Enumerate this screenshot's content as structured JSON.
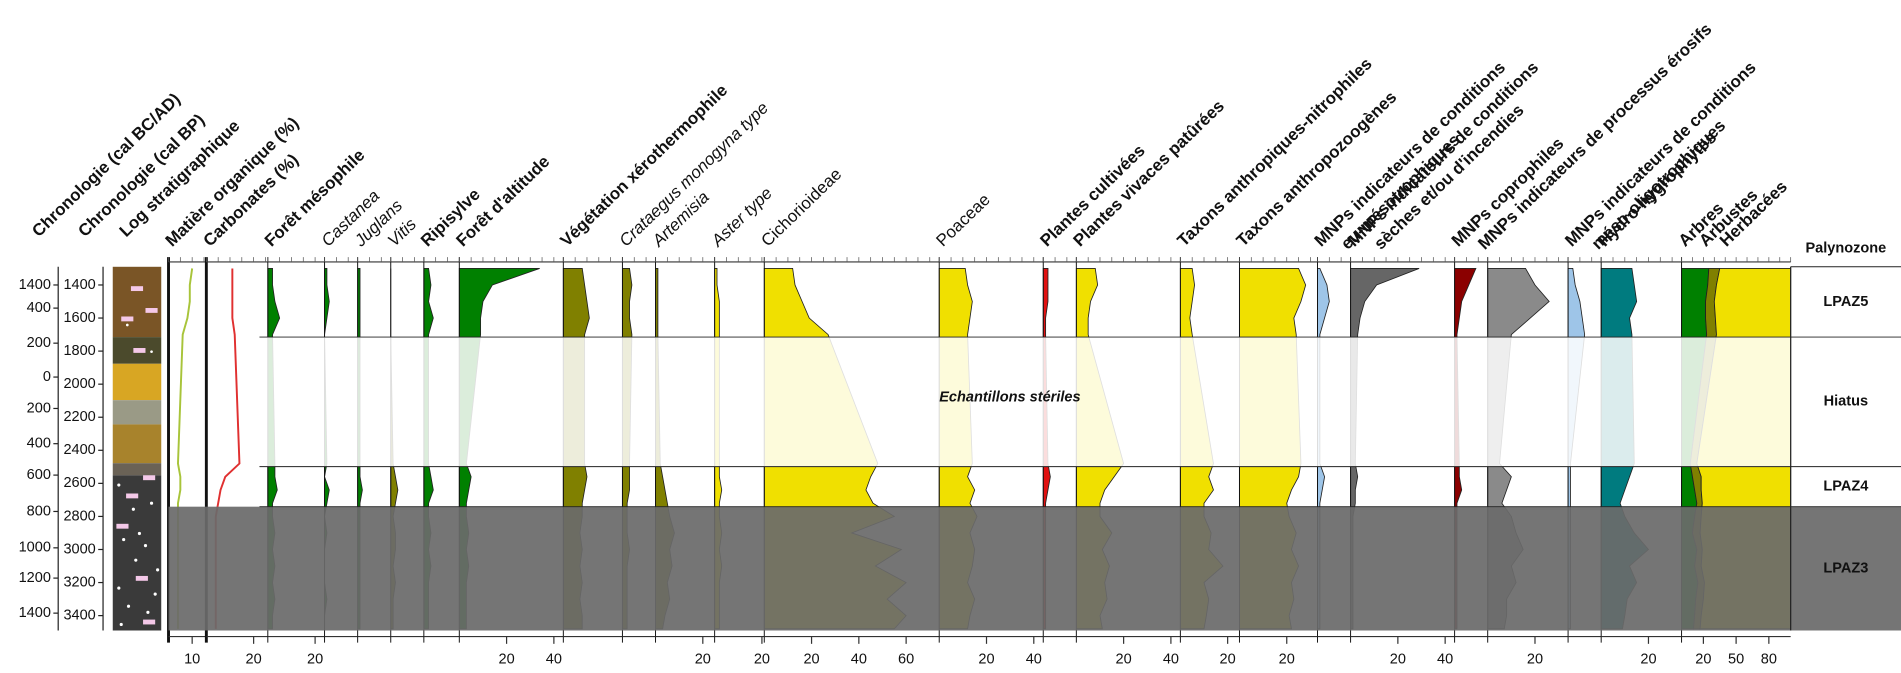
{
  "chart_data": {
    "type": "stratigraphic",
    "y_label_bcad": "Chronologie (cal BC/AD)",
    "y_label_bp": "Chronologie (cal BP)",
    "log_label": "Log stratigraphique",
    "ylim": [
      1290,
      3490
    ],
    "yticks": [
      1400,
      1600,
      1800,
      2000,
      2200,
      2400,
      2600,
      2800,
      3000,
      3200,
      3400
    ],
    "bcad_ticks": [
      {
        "value": 1400,
        "label": "1400"
      },
      {
        "value": 1540,
        "label": "400"
      },
      {
        "value": 1752,
        "label": "200"
      },
      {
        "value": 1957,
        "label": "0"
      },
      {
        "value": 2147,
        "label": "200"
      },
      {
        "value": 2360,
        "label": "400"
      },
      {
        "value": 2550,
        "label": "600"
      },
      {
        "value": 2770,
        "label": "800"
      },
      {
        "value": 2990,
        "label": "1000"
      },
      {
        "value": 3173,
        "label": "1200"
      },
      {
        "value": 3385,
        "label": "1400"
      }
    ],
    "depths": [
      1300,
      1400,
      1500,
      1600,
      1700,
      2480,
      2560,
      2640,
      2720,
      2800,
      2900,
      3000,
      3100,
      3200,
      3300,
      3400,
      3480
    ],
    "panels": [
      {
        "name": "Matière organique (%)",
        "style": "bold",
        "mark": "line",
        "color": "#a8c43a",
        "xlim": [
          0,
          16
        ],
        "xticks": [
          10
        ],
        "values": [
          10,
          9,
          9,
          8,
          6,
          4,
          5,
          5,
          4,
          4,
          4,
          4,
          4,
          4,
          4,
          4,
          4
        ]
      },
      {
        "name": "Carbonates (%)",
        "style": "bold",
        "mark": "line",
        "color": "#e03030",
        "xlim": [
          0,
          26
        ],
        "xticks": [
          20
        ],
        "values": [
          11,
          11,
          11,
          11,
          12,
          14,
          8,
          6,
          5,
          4,
          4,
          4,
          4,
          4,
          4,
          4,
          4
        ]
      },
      {
        "name": "Forêt mésophile",
        "style": "bold",
        "mark": "area",
        "color": "#008000",
        "xlim": [
          0,
          24
        ],
        "xticks": [
          20
        ],
        "values": [
          2,
          2,
          3,
          5,
          2,
          3,
          3,
          4,
          2,
          2,
          3,
          2,
          3,
          2,
          3,
          2,
          2
        ]
      },
      {
        "name": "Castanea",
        "style": "italic",
        "mark": "area",
        "color": "#008000",
        "xlim": [
          0,
          14
        ],
        "xticks": [],
        "values": [
          1,
          1,
          2,
          1,
          0,
          1,
          0,
          2,
          1,
          0,
          1,
          0,
          0,
          0,
          1,
          0,
          0
        ]
      },
      {
        "name": "Juglans",
        "style": "italic",
        "mark": "area",
        "color": "#008000",
        "xlim": [
          0,
          14
        ],
        "xticks": [],
        "values": [
          1,
          1,
          1,
          1,
          1,
          1,
          1,
          2,
          1,
          1,
          1,
          1,
          1,
          1,
          1,
          1,
          1
        ]
      },
      {
        "name": "Vitis",
        "style": "italic",
        "mark": "area",
        "color": "#808000",
        "xlim": [
          0,
          14
        ],
        "xticks": [],
        "values": [
          0,
          0,
          0,
          0,
          0,
          1,
          2,
          3,
          2,
          1,
          2,
          2,
          1,
          2,
          1,
          1,
          1
        ]
      },
      {
        "name": "Ripisylve",
        "style": "bold",
        "mark": "area",
        "color": "#008000",
        "xlim": [
          0,
          15
        ],
        "xticks": [],
        "values": [
          2,
          3,
          2,
          4,
          2,
          2,
          3,
          4,
          2,
          2,
          3,
          2,
          3,
          2,
          2,
          2,
          2
        ]
      },
      {
        "name": "Forêt d'altitude",
        "style": "bold",
        "mark": "area",
        "color": "#008000",
        "xlim": [
          0,
          44
        ],
        "xticks": [
          20,
          40
        ],
        "values": [
          34,
          14,
          10,
          9,
          9,
          3,
          5,
          4,
          3,
          3,
          4,
          3,
          4,
          3,
          3,
          3,
          3
        ]
      },
      {
        "name": "Végétation xérothermophile",
        "style": "bold",
        "mark": "area",
        "color": "#808000",
        "xlim": [
          0,
          25
        ],
        "xticks": [],
        "values": [
          8,
          9,
          10,
          11,
          9,
          9,
          10,
          9,
          8,
          8,
          7,
          8,
          7,
          8,
          7,
          8,
          8
        ]
      },
      {
        "name": "Crataegus monogyna type",
        "style": "italic",
        "mark": "area",
        "color": "#808000",
        "xlim": [
          0,
          14
        ],
        "xticks": [],
        "values": [
          3,
          4,
          3,
          3,
          4,
          3,
          3,
          3,
          2,
          2,
          2,
          3,
          2,
          2,
          2,
          2,
          2
        ]
      },
      {
        "name": "Artemisia",
        "style": "italic",
        "mark": "area",
        "color": "#808000",
        "xlim": [
          0,
          25
        ],
        "xticks": [
          20
        ],
        "values": [
          1,
          1,
          1,
          1,
          1,
          2,
          3,
          4,
          5,
          6,
          8,
          6,
          7,
          5,
          6,
          4,
          3
        ]
      },
      {
        "name": "Aster type",
        "style": "italic",
        "mark": "area",
        "color": "#f0e000",
        "xlim": [
          0,
          21
        ],
        "xticks": [
          20
        ],
        "values": [
          1,
          1,
          2,
          2,
          2,
          2,
          2,
          3,
          2,
          2,
          3,
          2,
          3,
          2,
          2,
          2,
          2
        ]
      },
      {
        "name": "Cichorioideae",
        "style": "plain",
        "mark": "area",
        "color": "#f0e000",
        "xlim": [
          0,
          74
        ],
        "xticks": [
          20,
          40,
          60
        ],
        "values": [
          12,
          13,
          16,
          19,
          27,
          48,
          45,
          43,
          46,
          55,
          37,
          58,
          47,
          60,
          52,
          60,
          55
        ]
      },
      {
        "name": "Poaceae",
        "style": "plain",
        "mark": "area",
        "color": "#f0e000",
        "xlim": [
          0,
          44
        ],
        "xticks": [
          20,
          40
        ],
        "values": [
          11,
          12,
          14,
          13,
          12,
          14,
          12,
          15,
          13,
          16,
          13,
          15,
          14,
          12,
          15,
          13,
          12
        ]
      },
      {
        "name": "Plantes cultivées",
        "style": "bold",
        "mark": "area",
        "color": "#e01010",
        "xlim": [
          0,
          14
        ],
        "xticks": [],
        "values": [
          2,
          2,
          2,
          1,
          1,
          2,
          3,
          2,
          1,
          1,
          1,
          1,
          1,
          1,
          1,
          1,
          1
        ]
      },
      {
        "name": "Plantes vivaces patûrées",
        "style": "bold",
        "mark": "area",
        "color": "#f0e000",
        "xlim": [
          0,
          44
        ],
        "xticks": [
          20,
          40
        ],
        "values": [
          8,
          9,
          6,
          5,
          5,
          20,
          16,
          12,
          10,
          10,
          15,
          11,
          14,
          12,
          13,
          10,
          11
        ]
      },
      {
        "name": "Taxons anthropiques-nitrophiles",
        "style": "bold",
        "mark": "area",
        "color": "#f0e000",
        "xlim": [
          0,
          25
        ],
        "xticks": [
          20
        ],
        "values": [
          5,
          6,
          5,
          4,
          5,
          14,
          12,
          14,
          10,
          10,
          13,
          12,
          18,
          10,
          12,
          11,
          10
        ]
      },
      {
        "name": "Taxons anthropozoogènes",
        "style": "bold",
        "mark": "area",
        "color": "#f0e000",
        "xlim": [
          0,
          33
        ],
        "xticks": [
          20
        ],
        "values": [
          25,
          28,
          26,
          23,
          24,
          26,
          25,
          22,
          20,
          21,
          24,
          22,
          25,
          22,
          23,
          21,
          22
        ]
      },
      {
        "name": [
          "MNPs indicateurs de conditions",
          "eu-mésotrophiques"
        ],
        "style": "bold",
        "mark": "area",
        "color": "#9ec5e8",
        "xlim": [
          0,
          14
        ],
        "xticks": [],
        "values": [
          1,
          4,
          5,
          3,
          1,
          1,
          3,
          2,
          1,
          1,
          1,
          1,
          1,
          1,
          1,
          1,
          1
        ]
      },
      {
        "name": [
          "MNPs indicateurs de conditions",
          "sèches et/ou d'incendies"
        ],
        "style": "bold",
        "mark": "area",
        "color": "#666666",
        "xlim": [
          0,
          44
        ],
        "xticks": [
          20,
          40
        ],
        "values": [
          29,
          11,
          6,
          4,
          3,
          2,
          3,
          2,
          2,
          1,
          1,
          1,
          1,
          1,
          1,
          1,
          1
        ]
      },
      {
        "name": [
          "MNPs coprophiles",
          "MNPs indicateurs de processus érosifs"
        ],
        "style": "bold",
        "mark": "area",
        "color": "#8b0000",
        "xlim": [
          0,
          14
        ],
        "xticks": [],
        "values": [
          9,
          6,
          3,
          2,
          1,
          2,
          2,
          3,
          1,
          1,
          1,
          1,
          1,
          1,
          1,
          1,
          1
        ]
      },
      {
        "name": "",
        "style": "bold",
        "mark": "area",
        "color": "#8a8a8a",
        "xlim": [
          0,
          34
        ],
        "xticks": [
          20
        ],
        "values": [
          16,
          20,
          26,
          18,
          10,
          5,
          10,
          8,
          6,
          10,
          12,
          15,
          10,
          12,
          8,
          8,
          7
        ]
      },
      {
        "name": [
          "MNPs indicateurs de conditions",
          "méso-oligotrophiques"
        ],
        "style": "bold",
        "mark": "area",
        "color": "#9ec5e8",
        "xlim": [
          0,
          14
        ],
        "xticks": [],
        "values": [
          2,
          3,
          5,
          6,
          7,
          1,
          1,
          1,
          1,
          1,
          1,
          1,
          1,
          1,
          1,
          1,
          1
        ]
      },
      {
        "name": "Hydro-hygrophytes",
        "style": "bold",
        "mark": "area",
        "color": "#007b7f",
        "xlim": [
          0,
          34
        ],
        "xticks": [
          20
        ],
        "values": [
          13,
          14,
          15,
          12,
          13,
          14,
          12,
          10,
          8,
          10,
          14,
          20,
          12,
          15,
          11,
          10,
          9
        ]
      }
    ],
    "stack": {
      "xlim": [
        0,
        100
      ],
      "xticks": [
        20,
        50,
        80
      ],
      "series": [
        {
          "name": "Arbres",
          "color": "#008000",
          "values": [
            25,
            24,
            22,
            22,
            23,
            8,
            10,
            12,
            14,
            12,
            10,
            14,
            12,
            15,
            13,
            12,
            11
          ]
        },
        {
          "name": "Arbustes",
          "color": "#808000",
          "values": [
            10,
            8,
            8,
            9,
            9,
            6,
            8,
            6,
            5,
            6,
            7,
            5,
            6,
            6,
            7,
            6,
            6
          ]
        },
        {
          "name": "Herbacées",
          "color": "#f0e000",
          "values": [
            65,
            68,
            70,
            69,
            68,
            86,
            82,
            82,
            81,
            82,
            83,
            81,
            82,
            79,
            80,
            82,
            83
          ]
        }
      ]
    },
    "zone_header": "Palynozone",
    "zones": [
      {
        "label": "LPAZ5",
        "top": 1290,
        "bottom": 1715,
        "overlay": "none"
      },
      {
        "label": "Hiatus",
        "top": 1715,
        "bottom": 2499,
        "overlay": "#ffffff"
      },
      {
        "label": "LPAZ4",
        "top": 2499,
        "bottom": 2741,
        "overlay": "none"
      },
      {
        "label": "LPAZ3",
        "top": 2741,
        "bottom": 3490,
        "overlay": "#6b6b6b"
      }
    ],
    "annotation": "Echantillons stériles"
  }
}
